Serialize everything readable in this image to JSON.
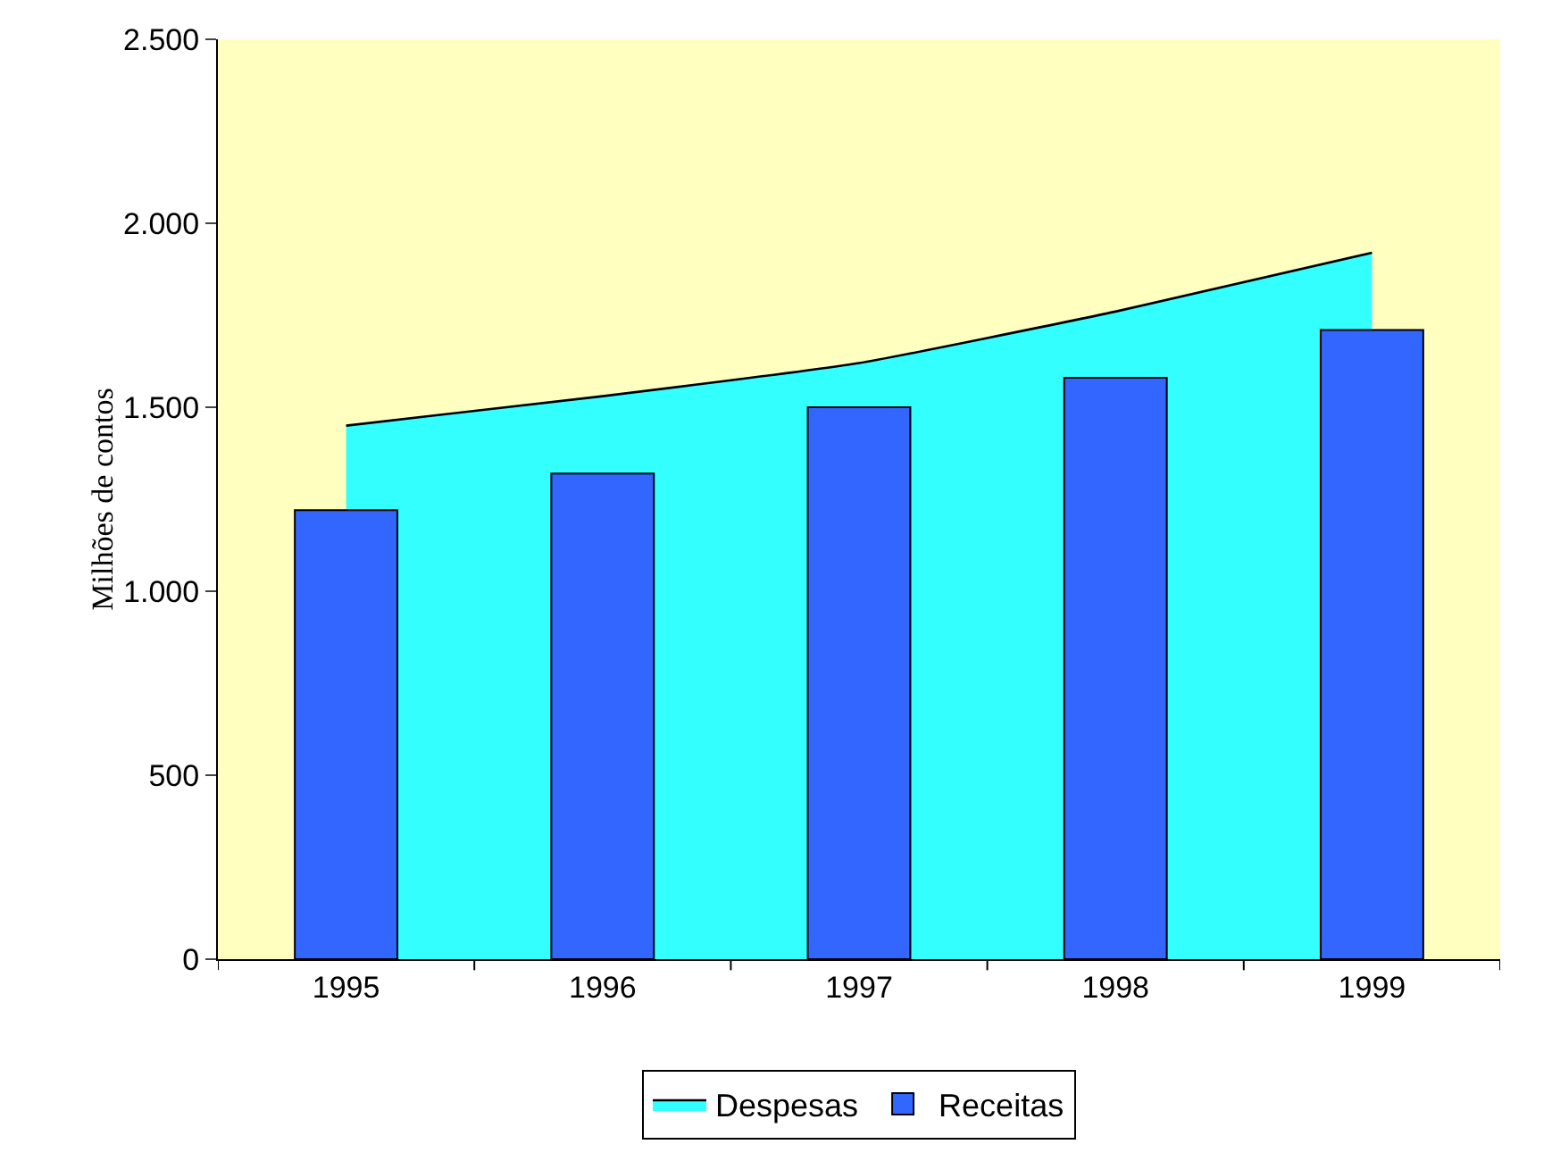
{
  "chart_data": {
    "type": "bar",
    "ylabel": "Milhões de contos",
    "categories": [
      "1995",
      "1996",
      "1997",
      "1998",
      "1999"
    ],
    "series": [
      {
        "name": "Despesas",
        "type": "area",
        "color": "#33ffff",
        "values": [
          1450,
          1530,
          1620,
          1760,
          1920
        ]
      },
      {
        "name": "Receitas",
        "color": "#3366ff",
        "values": [
          1220,
          1320,
          1500,
          1580,
          1710
        ]
      }
    ],
    "ylim": [
      0,
      2500
    ],
    "yticks": [
      0,
      500,
      {
        "value": 1000,
        "label": "1.000"
      },
      {
        "value": 1500,
        "label": "1.500"
      },
      {
        "value": 2000,
        "label": "2.000"
      },
      {
        "value": 2500,
        "label": "2.500"
      }
    ],
    "grid": false,
    "legend": "bottom"
  }
}
